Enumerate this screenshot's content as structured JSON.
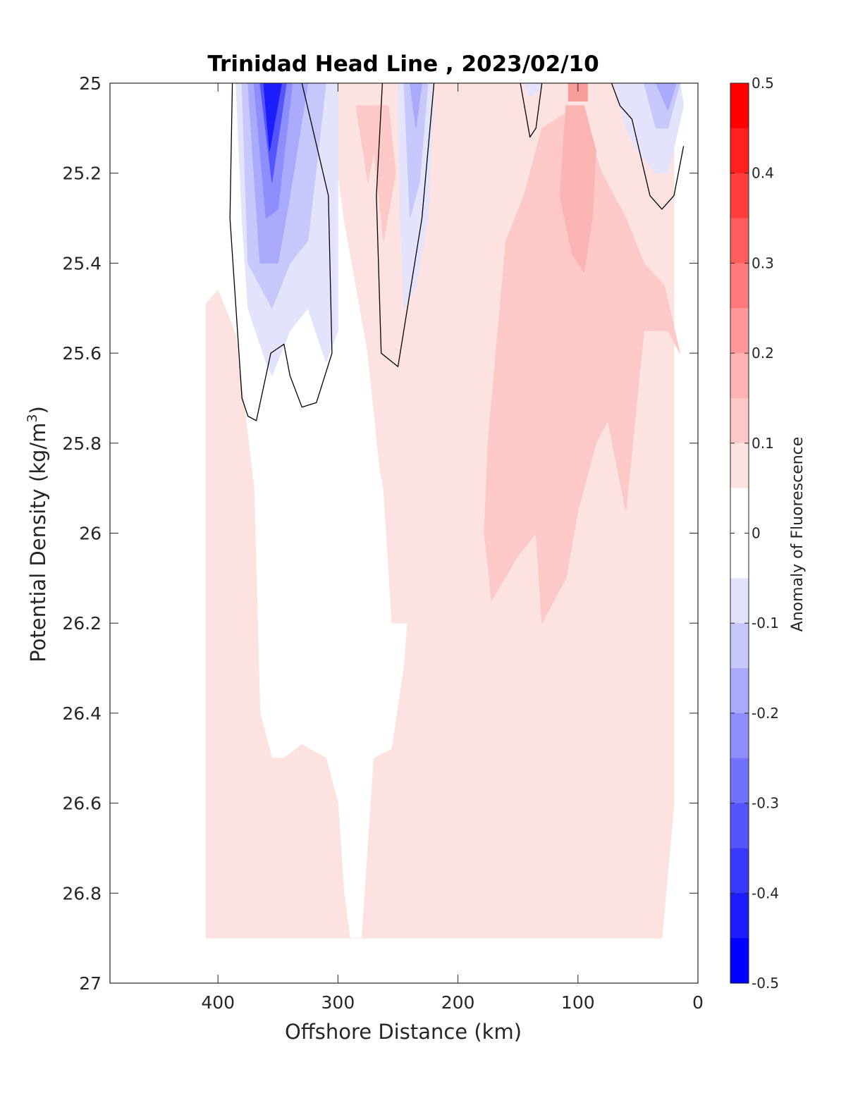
{
  "chart_data": {
    "type": "filled-contour",
    "title": "Trinidad Head Line , 2023/02/10",
    "xlabel": "Offshore Distance (km)",
    "ylabel_main": "Potential Density (kg/m",
    "ylabel_sup": "3",
    "ylabel_end": ")",
    "xlim": [
      490,
      0
    ],
    "ylim": [
      27,
      25
    ],
    "x_reversed": true,
    "y_reversed": true,
    "x_ticks": [
      400,
      300,
      200,
      100,
      0
    ],
    "x_tick_labels": [
      "400",
      "300",
      "200",
      "100",
      "0"
    ],
    "y_ticks": [
      25,
      25.2,
      25.4,
      25.6,
      25.8,
      26,
      26.2,
      26.4,
      26.6,
      26.8,
      27
    ],
    "y_tick_labels": [
      "25",
      "25.2",
      "25.4",
      "25.6",
      "25.8",
      "26",
      "26.2",
      "26.4",
      "26.6",
      "26.8",
      "27"
    ],
    "colorbar": {
      "label": "Anomaly of Fluorescence",
      "range": [
        -0.5,
        0.5
      ],
      "ticks": [
        0.5,
        0.4,
        0.3,
        0.2,
        0.1,
        0,
        -0.1,
        -0.2,
        -0.3,
        -0.4,
        -0.5
      ],
      "tick_labels": [
        "0.5",
        "0.4",
        "0.3",
        "0.2",
        "0.1",
        "0",
        "-0.1",
        "-0.2",
        "-0.3",
        "-0.4",
        "-0.5"
      ],
      "colors": [
        "#ff0000",
        "#ff1f1f",
        "#ff3d3d",
        "#ff5c5c",
        "#ff7a7a",
        "#ff9999",
        "#ffb3b3",
        "#fcc8c8",
        "#fde2e2",
        "#ffffff",
        "#ffffff",
        "#e3e3fc",
        "#c7c7fc",
        "#aaaafc",
        "#8e8efc",
        "#7171fc",
        "#5555fc",
        "#3939fc",
        "#1d1dfc",
        "#0000ff"
      ]
    },
    "zero_contour": true,
    "regions": [
      {
        "level": 0.05,
        "color": "#fde2e2",
        "points": [
          [
            410,
            26.9
          ],
          [
            410,
            25.49
          ],
          [
            400,
            25.46
          ],
          [
            385,
            25.56
          ],
          [
            370,
            25.9
          ],
          [
            365,
            26.4
          ],
          [
            355,
            26.5
          ],
          [
            345,
            26.5
          ],
          [
            330,
            26.47
          ],
          [
            310,
            26.5
          ],
          [
            300,
            26.6
          ],
          [
            295,
            26.8
          ],
          [
            290,
            26.9
          ],
          [
            280,
            26.9
          ],
          [
            275,
            26.7
          ],
          [
            270,
            26.5
          ],
          [
            255,
            26.48
          ],
          [
            245,
            26.3
          ],
          [
            242,
            26.2
          ],
          [
            255,
            26.2
          ],
          [
            262,
            25.9
          ],
          [
            265,
            25.86
          ],
          [
            275,
            25.6
          ],
          [
            295,
            25.3
          ],
          [
            310,
            25.0
          ],
          [
            20,
            25.0
          ],
          [
            20,
            26.6
          ],
          [
            30,
            26.9
          ]
        ]
      },
      {
        "level": 0.15,
        "color": "#fcc8c8",
        "points": [
          [
            15,
            25.6
          ],
          [
            28,
            25.45
          ],
          [
            45,
            25.4
          ],
          [
            60,
            25.3
          ],
          [
            80,
            25.2
          ],
          [
            100,
            25.05
          ],
          [
            130,
            25.1
          ],
          [
            145,
            25.25
          ],
          [
            160,
            25.35
          ],
          [
            175,
            25.8
          ],
          [
            178,
            26.0
          ],
          [
            172,
            26.15
          ],
          [
            150,
            26.05
          ],
          [
            135,
            26.0
          ],
          [
            130,
            26.2
          ],
          [
            110,
            26.1
          ],
          [
            100,
            25.95
          ],
          [
            85,
            25.8
          ],
          [
            75,
            25.75
          ],
          [
            60,
            25.95
          ],
          [
            45,
            25.55
          ],
          [
            25,
            25.55
          ]
        ]
      },
      {
        "level": 0.15,
        "color": "#fcc8c8",
        "points": [
          [
            285,
            25.05
          ],
          [
            275,
            25.22
          ],
          [
            270,
            25.15
          ],
          [
            262,
            25.35
          ],
          [
            252,
            25.2
          ],
          [
            258,
            25.05
          ]
        ]
      },
      {
        "level": 0.2,
        "color": "#fbb4b4",
        "points": [
          [
            110,
            25.05
          ],
          [
            95,
            25.05
          ],
          [
            85,
            25.15
          ],
          [
            88,
            25.3
          ],
          [
            95,
            25.42
          ],
          [
            105,
            25.38
          ],
          [
            115,
            25.25
          ]
        ]
      },
      {
        "level": 0.25,
        "color": "#f99c9c",
        "points": [
          [
            108,
            25.0
          ],
          [
            92,
            25.0
          ],
          [
            92,
            25.04
          ],
          [
            108,
            25.04
          ]
        ]
      },
      {
        "level": -0.05,
        "color": "#e3e3fc",
        "points": [
          [
            385,
            25.0
          ],
          [
            380,
            25.3
          ],
          [
            375,
            25.5
          ],
          [
            360,
            25.62
          ],
          [
            355,
            25.65
          ],
          [
            340,
            25.55
          ],
          [
            325,
            25.5
          ],
          [
            310,
            25.62
          ],
          [
            300,
            25.55
          ],
          [
            300,
            25.0
          ]
        ]
      },
      {
        "level": -0.05,
        "color": "#e3e3fc",
        "points": [
          [
            250,
            25.0
          ],
          [
            248,
            25.3
          ],
          [
            245,
            25.5
          ],
          [
            235,
            25.45
          ],
          [
            225,
            25.3
          ],
          [
            220,
            25.0
          ]
        ]
      },
      {
        "level": -0.05,
        "color": "#e3e3fc",
        "points": [
          [
            70,
            25.0
          ],
          [
            60,
            25.1
          ],
          [
            50,
            25.15
          ],
          [
            35,
            25.2
          ],
          [
            25,
            25.2
          ],
          [
            12,
            25.05
          ],
          [
            15,
            25.0
          ]
        ]
      },
      {
        "level": -0.05,
        "color": "#e3e3fc",
        "points": [
          [
            145,
            25.0
          ],
          [
            140,
            25.03
          ],
          [
            130,
            25.01
          ],
          [
            132,
            25.0
          ]
        ]
      },
      {
        "level": -0.15,
        "color": "#c7c7fc",
        "points": [
          [
            380,
            25.0
          ],
          [
            375,
            25.4
          ],
          [
            355,
            25.5
          ],
          [
            340,
            25.4
          ],
          [
            325,
            25.35
          ],
          [
            310,
            25.0
          ]
        ]
      },
      {
        "level": -0.15,
        "color": "#c7c7fc",
        "points": [
          [
            245,
            25.0
          ],
          [
            240,
            25.3
          ],
          [
            232,
            25.22
          ],
          [
            225,
            25.0
          ]
        ]
      },
      {
        "level": -0.15,
        "color": "#c7c7fc",
        "points": [
          [
            45,
            25.0
          ],
          [
            35,
            25.1
          ],
          [
            25,
            25.1
          ],
          [
            15,
            25.0
          ]
        ]
      },
      {
        "level": -0.25,
        "color": "#aaaafc",
        "points": [
          [
            375,
            25.0
          ],
          [
            365,
            25.4
          ],
          [
            350,
            25.4
          ],
          [
            340,
            25.25
          ],
          [
            325,
            25.0
          ]
        ]
      },
      {
        "level": -0.25,
        "color": "#aaaafc",
        "points": [
          [
            240,
            25.0
          ],
          [
            235,
            25.1
          ],
          [
            230,
            25.0
          ]
        ]
      },
      {
        "level": -0.25,
        "color": "#aaaafc",
        "points": [
          [
            35,
            25.0
          ],
          [
            25,
            25.06
          ],
          [
            18,
            25.0
          ]
        ]
      },
      {
        "level": -0.35,
        "color": "#8e8efc",
        "points": [
          [
            370,
            25.0
          ],
          [
            360,
            25.3
          ],
          [
            350,
            25.28
          ],
          [
            338,
            25.0
          ]
        ]
      },
      {
        "level": -0.4,
        "color": "#5555fc",
        "points": [
          [
            365,
            25.0
          ],
          [
            355,
            25.22
          ],
          [
            343,
            25.0
          ]
        ]
      },
      {
        "level": -0.45,
        "color": "#1d1dfc",
        "points": [
          [
            362,
            25.0
          ],
          [
            357,
            25.15
          ],
          [
            347,
            25.0
          ]
        ]
      }
    ],
    "contour_lines": [
      [
        [
          388,
          25.0
        ],
        [
          390,
          25.3
        ],
        [
          385,
          25.5
        ],
        [
          380,
          25.7
        ],
        [
          375,
          25.74
        ],
        [
          368,
          25.75
        ],
        [
          356,
          25.6
        ],
        [
          345,
          25.58
        ],
        [
          340,
          25.65
        ],
        [
          330,
          25.72
        ],
        [
          318,
          25.71
        ],
        [
          305,
          25.6
        ],
        [
          308,
          25.25
        ],
        [
          330,
          25.0
        ]
      ],
      [
        [
          263,
          25.0
        ],
        [
          268,
          25.25
        ],
        [
          264,
          25.6
        ],
        [
          250,
          25.63
        ],
        [
          230,
          25.3
        ],
        [
          220,
          25.0
        ]
      ],
      [
        [
          148,
          25.0
        ],
        [
          140,
          25.12
        ],
        [
          135,
          25.1
        ],
        [
          130,
          25.0
        ]
      ],
      [
        [
          72,
          25.0
        ],
        [
          65,
          25.05
        ],
        [
          55,
          25.08
        ],
        [
          40,
          25.25
        ],
        [
          30,
          25.28
        ],
        [
          20,
          25.25
        ],
        [
          12,
          25.14
        ]
      ]
    ]
  }
}
